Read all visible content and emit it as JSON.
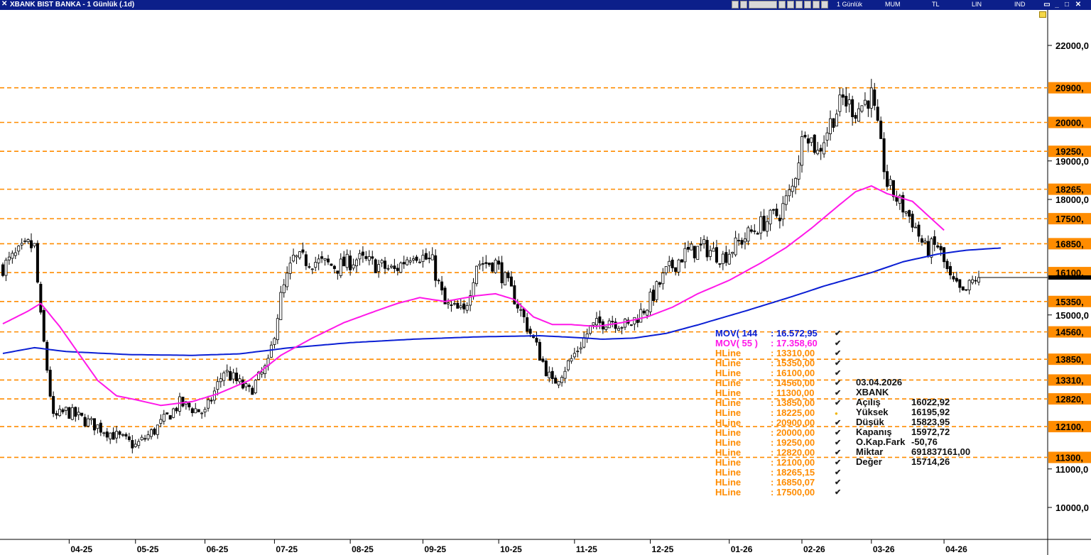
{
  "window": {
    "title": "XBANK BIST BANKA - 1 Günlük (.1d)",
    "toolbar": {
      "period": "1 Günlük",
      "style": "MUM",
      "currency": "TL",
      "scale": "LIN",
      "indicator": "IND"
    }
  },
  "chart_data": {
    "type": "candlestick",
    "title": "XBANK BIST BANKA - 1 Günlük (.1d)",
    "x_ticks": [
      "04-25",
      "05-25",
      "06-25",
      "07-25",
      "08-25",
      "09-25",
      "10-25",
      "11-25",
      "12-25",
      "01-26",
      "02-26",
      "03-26",
      "04-26"
    ],
    "y_ticks": [
      "22000,0",
      "19000,0",
      "18000,0",
      "15000,0",
      "11000,0",
      "10000,0"
    ],
    "ylim": [
      9400,
      23000
    ],
    "hlines": [
      {
        "label": "20900,",
        "value": 20900
      },
      {
        "label": "20000,",
        "value": 20000
      },
      {
        "label": "19250,",
        "value": 19250
      },
      {
        "label": "18265,",
        "value": 18265
      },
      {
        "label": "17500,",
        "value": 17500
      },
      {
        "label": "16850,",
        "value": 16850
      },
      {
        "label": "16100,",
        "value": 16100
      },
      {
        "label": "15350,",
        "value": 15350
      },
      {
        "label": "14560,",
        "value": 14560
      },
      {
        "label": "13850,",
        "value": 13850
      },
      {
        "label": "13310,",
        "value": 13310
      },
      {
        "label": "12820,",
        "value": 12820
      },
      {
        "label": "12100,",
        "value": 12100
      },
      {
        "label": "11300,",
        "value": 11300
      }
    ],
    "hline_color": "#ff8c00",
    "last_price": 15972.72,
    "series": [
      {
        "name": "MOV( 144 : 16.572,95",
        "color": "#0b1fd4",
        "anchors": [
          [
            0,
            14000
          ],
          [
            10,
            14150
          ],
          [
            20,
            14050
          ],
          [
            40,
            13970
          ],
          [
            60,
            13950
          ],
          [
            75,
            13990
          ],
          [
            90,
            14140
          ],
          [
            110,
            14280
          ],
          [
            130,
            14370
          ],
          [
            150,
            14430
          ],
          [
            170,
            14460
          ],
          [
            180,
            14420
          ],
          [
            190,
            14370
          ],
          [
            200,
            14400
          ],
          [
            210,
            14520
          ],
          [
            220,
            14740
          ],
          [
            235,
            15100
          ],
          [
            250,
            15480
          ],
          [
            260,
            15750
          ],
          [
            275,
            16100
          ],
          [
            285,
            16380
          ],
          [
            296,
            16580
          ],
          [
            305,
            16680
          ],
          [
            316,
            16740
          ]
        ]
      },
      {
        "name": "MOV( 55 ) : 17.358,60",
        "color": "#ff18e8",
        "anchors": [
          [
            0,
            14770
          ],
          [
            8,
            15100
          ],
          [
            12,
            15300
          ],
          [
            18,
            14700
          ],
          [
            24,
            14000
          ],
          [
            30,
            13300
          ],
          [
            36,
            12900
          ],
          [
            42,
            12800
          ],
          [
            50,
            12650
          ],
          [
            60,
            12750
          ],
          [
            68,
            12950
          ],
          [
            78,
            13300
          ],
          [
            88,
            13950
          ],
          [
            98,
            14400
          ],
          [
            108,
            14800
          ],
          [
            118,
            15100
          ],
          [
            125,
            15300
          ],
          [
            132,
            15450
          ],
          [
            140,
            15350
          ],
          [
            150,
            15500
          ],
          [
            156,
            15550
          ],
          [
            162,
            15400
          ],
          [
            168,
            14950
          ],
          [
            174,
            14750
          ],
          [
            180,
            14750
          ],
          [
            188,
            14700
          ],
          [
            196,
            14800
          ],
          [
            204,
            14950
          ],
          [
            212,
            15200
          ],
          [
            220,
            15550
          ],
          [
            230,
            15900
          ],
          [
            240,
            16350
          ],
          [
            248,
            16750
          ],
          [
            256,
            17250
          ],
          [
            264,
            17800
          ],
          [
            270,
            18200
          ],
          [
            275,
            18350
          ],
          [
            280,
            18150
          ],
          [
            288,
            17950
          ],
          [
            294,
            17500
          ],
          [
            298,
            17200
          ]
        ]
      }
    ],
    "close_anchors": [
      [
        0,
        16250
      ],
      [
        8,
        16800
      ],
      [
        10,
        16750
      ],
      [
        12,
        14900
      ],
      [
        14,
        13600
      ],
      [
        16,
        12300
      ],
      [
        20,
        12500
      ],
      [
        30,
        12100
      ],
      [
        36,
        11850
      ],
      [
        42,
        11600
      ],
      [
        48,
        12000
      ],
      [
        56,
        12700
      ],
      [
        64,
        12450
      ],
      [
        70,
        13550
      ],
      [
        78,
        13000
      ],
      [
        84,
        13700
      ],
      [
        88,
        15450
      ],
      [
        92,
        16450
      ],
      [
        98,
        16400
      ],
      [
        106,
        16250
      ],
      [
        112,
        16450
      ],
      [
        118,
        16300
      ],
      [
        124,
        16150
      ],
      [
        130,
        16650
      ],
      [
        136,
        16350
      ],
      [
        140,
        15250
      ],
      [
        146,
        15050
      ],
      [
        150,
        16350
      ],
      [
        156,
        16350
      ],
      [
        162,
        15450
      ],
      [
        168,
        14350
      ],
      [
        174,
        13200
      ],
      [
        180,
        13850
      ],
      [
        186,
        14650
      ],
      [
        192,
        14900
      ],
      [
        198,
        14700
      ],
      [
        204,
        15250
      ],
      [
        210,
        16100
      ],
      [
        216,
        16600
      ],
      [
        222,
        16750
      ],
      [
        228,
        16500
      ],
      [
        234,
        16950
      ],
      [
        240,
        17350
      ],
      [
        246,
        17650
      ],
      [
        250,
        18300
      ],
      [
        254,
        19900
      ],
      [
        258,
        19200
      ],
      [
        262,
        20000
      ],
      [
        266,
        20600
      ],
      [
        270,
        20300
      ],
      [
        275,
        20700
      ],
      [
        280,
        18400
      ],
      [
        284,
        17900
      ],
      [
        288,
        17450
      ],
      [
        292,
        16700
      ],
      [
        296,
        16800
      ],
      [
        300,
        15900
      ],
      [
        304,
        15500
      ],
      [
        308,
        15972.72
      ]
    ],
    "candle_count": 310
  },
  "legend": [
    {
      "name": "MOV( 144",
      "value": ": 16.572,95",
      "color": "#0b1fd4"
    },
    {
      "name": "MOV( 55 )",
      "value": ": 17.358,60",
      "color": "#ff18e8"
    },
    {
      "name": "HLine",
      "value": ": 13310,00",
      "color": "#ff8c00"
    },
    {
      "name": "HLine",
      "value": ": 15350,00",
      "color": "#ff8c00"
    },
    {
      "name": "HLine",
      "value": ": 16100,00",
      "color": "#ff8c00"
    },
    {
      "name": "HLine",
      "value": ": 14560,00",
      "color": "#ff8c00"
    },
    {
      "name": "HLine",
      "value": ": 11300,00",
      "color": "#ff8c00"
    },
    {
      "name": "HLine",
      "value": ": 13850,00",
      "color": "#ff8c00"
    },
    {
      "name": "HLine",
      "value": ": 18225,00",
      "color": "#ff8c00",
      "mark": "dot"
    },
    {
      "name": "HLine",
      "value": ": 20900,00",
      "color": "#ff8c00"
    },
    {
      "name": "HLine",
      "value": ": 20000,00",
      "color": "#ff8c00"
    },
    {
      "name": "HLine",
      "value": ": 19250,00",
      "color": "#ff8c00"
    },
    {
      "name": "HLine",
      "value": ": 12820,00",
      "color": "#ff8c00"
    },
    {
      "name": "HLine",
      "value": ": 12100,00",
      "color": "#ff8c00"
    },
    {
      "name": "HLine",
      "value": ": 18265,15",
      "color": "#ff8c00"
    },
    {
      "name": "HLine",
      "value": ": 16850,07",
      "color": "#ff8c00"
    },
    {
      "name": "HLine",
      "value": ": 17500,00",
      "color": "#ff8c00"
    }
  ],
  "info": {
    "date": "03.04.2026",
    "symbol": "XBANK",
    "rows": [
      {
        "k": "Açılış",
        "v": "16022,92"
      },
      {
        "k": "Yüksek",
        "v": "16195,92"
      },
      {
        "k": "Düşük",
        "v": "15823,95"
      },
      {
        "k": "Kapanış",
        "v": "15972,72"
      },
      {
        "k": "O.Kap.Fark",
        "v": "-50,76"
      },
      {
        "k": "Miktar",
        "v": "691837161,00"
      },
      {
        "k": "Değer",
        "v": "15714,26"
      }
    ]
  }
}
